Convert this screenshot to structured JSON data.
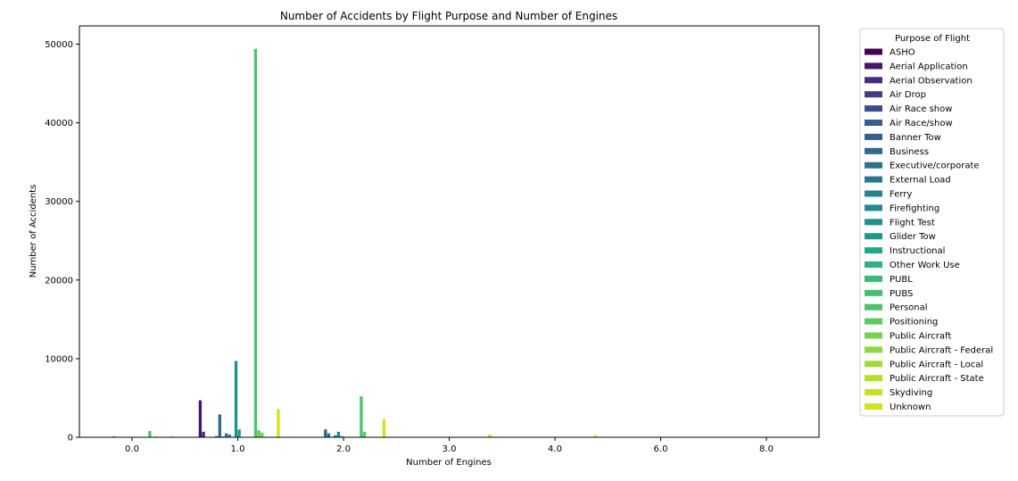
{
  "chart_data": {
    "type": "bar",
    "title": "Number of Accidents by Flight Purpose and Number of Engines",
    "xlabel": "Number of Engines",
    "ylabel": "Number of Accidents",
    "ylim": [
      0,
      50000
    ],
    "yticks": [
      "0",
      "10000",
      "20000",
      "30000",
      "40000",
      "50000"
    ],
    "categories": [
      "0.0",
      "1.0",
      "2.0",
      "3.0",
      "4.0",
      "6.0",
      "8.0"
    ],
    "grid": false,
    "legend": {
      "title": "Purpose of Flight",
      "placement": "outside-right"
    },
    "series": [
      {
        "name": "ASHO",
        "color": "#440154",
        "values": [
          0,
          0,
          0,
          0,
          0,
          0,
          0
        ]
      },
      {
        "name": "Aerial Application",
        "color": "#461667",
        "values": [
          0,
          4700,
          0,
          0,
          0,
          0,
          0
        ]
      },
      {
        "name": "Aerial Observation",
        "color": "#472a7a",
        "values": [
          0,
          700,
          40,
          0,
          0,
          0,
          0
        ]
      },
      {
        "name": "Air Drop",
        "color": "#433c84",
        "values": [
          0,
          0,
          0,
          0,
          0,
          0,
          0
        ]
      },
      {
        "name": "Air Race show",
        "color": "#3e4c8a",
        "values": [
          0,
          0,
          0,
          0,
          0,
          0,
          0
        ]
      },
      {
        "name": "Air Race/show",
        "color": "#3a5b8c",
        "values": [
          0,
          0,
          0,
          0,
          0,
          0,
          0
        ]
      },
      {
        "name": "Banner Tow",
        "color": "#355f8d",
        "values": [
          0,
          150,
          0,
          0,
          0,
          0,
          0
        ]
      },
      {
        "name": "Business",
        "color": "#31688e",
        "values": [
          100,
          2900,
          1000,
          0,
          0,
          0,
          0
        ]
      },
      {
        "name": "Executive/corporate",
        "color": "#2d728e",
        "values": [
          0,
          100,
          500,
          0,
          0,
          0,
          0
        ]
      },
      {
        "name": "External Load",
        "color": "#2a788e",
        "values": [
          0,
          500,
          0,
          0,
          0,
          0,
          0
        ]
      },
      {
        "name": "Ferry",
        "color": "#26828e",
        "values": [
          40,
          350,
          250,
          60,
          50,
          0,
          0
        ]
      },
      {
        "name": "Firefighting",
        "color": "#23898e",
        "values": [
          0,
          40,
          700,
          0,
          0,
          0,
          0
        ]
      },
      {
        "name": "Flight Test",
        "color": "#21918c",
        "values": [
          0,
          9700,
          150,
          0,
          0,
          0,
          0
        ]
      },
      {
        "name": "Glider Tow",
        "color": "#1f9a8a",
        "values": [
          0,
          1000,
          0,
          0,
          0,
          0,
          0
        ]
      },
      {
        "name": "Instructional",
        "color": "#22a884",
        "values": [
          0,
          0,
          0,
          0,
          0,
          0,
          0
        ]
      },
      {
        "name": "Other Work Use",
        "color": "#2db27d",
        "values": [
          40,
          0,
          0,
          0,
          0,
          0,
          0
        ]
      },
      {
        "name": "PUBL",
        "color": "#3aba76",
        "values": [
          0,
          0,
          0,
          0,
          0,
          0,
          0
        ]
      },
      {
        "name": "PUBS",
        "color": "#44bf70",
        "values": [
          0,
          0,
          0,
          0,
          0,
          0,
          0
        ]
      },
      {
        "name": "Personal",
        "color": "#4ec36b",
        "values": [
          800,
          49400,
          5200,
          0,
          0,
          0,
          0
        ]
      },
      {
        "name": "Positioning",
        "color": "#5ec962",
        "values": [
          0,
          900,
          700,
          0,
          0,
          0,
          0
        ]
      },
      {
        "name": "Public Aircraft",
        "color": "#7ad151",
        "values": [
          100,
          600,
          0,
          0,
          0,
          0,
          0
        ]
      },
      {
        "name": "Public Aircraft - Federal",
        "color": "#8fd744",
        "values": [
          0,
          0,
          0,
          0,
          0,
          0,
          0
        ]
      },
      {
        "name": "Public Aircraft - Local",
        "color": "#a2da37",
        "values": [
          0,
          0,
          0,
          0,
          0,
          0,
          0
        ]
      },
      {
        "name": "Public Aircraft - State",
        "color": "#b5de2b",
        "values": [
          0,
          0,
          0,
          0,
          0,
          0,
          0
        ]
      },
      {
        "name": "Skydiving",
        "color": "#cae11f",
        "values": [
          0,
          0,
          0,
          0,
          0,
          0,
          0
        ]
      },
      {
        "name": "Unknown",
        "color": "#d2e21b",
        "values": [
          150,
          3600,
          2300,
          350,
          250,
          0,
          0
        ]
      }
    ]
  }
}
